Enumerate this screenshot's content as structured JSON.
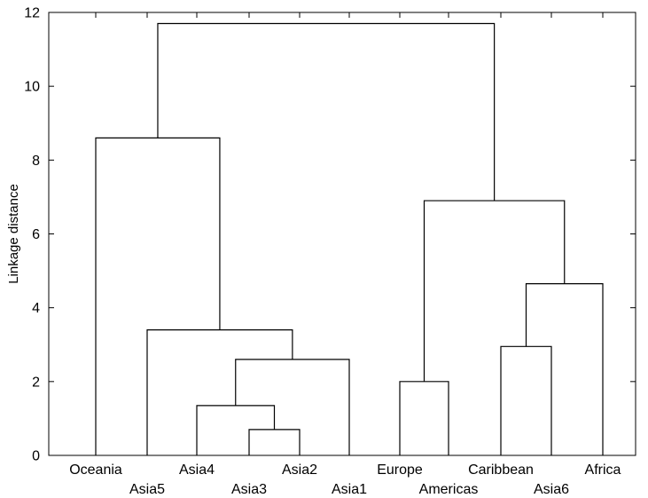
{
  "chart_data": {
    "type": "dendrogram",
    "title": "",
    "xlabel": "",
    "ylabel": "Linkage distance",
    "ylim": [
      0,
      12
    ],
    "y_ticks": [
      0,
      2,
      4,
      6,
      8,
      10,
      12
    ],
    "grid": false,
    "leaves": [
      "Oceania",
      "Asia5",
      "Asia4",
      "Asia3",
      "Asia2",
      "Asia1",
      "Europe",
      "Americas",
      "Caribbean",
      "Asia6",
      "Africa"
    ],
    "merges": [
      {
        "left": "Asia3",
        "right": "Asia2",
        "height": 0.7
      },
      {
        "left": "Asia4",
        "right": "Asia3+Asia2",
        "height": 1.35
      },
      {
        "left": "Asia4+Asia3+Asia2",
        "right": "Asia1",
        "height": 2.6
      },
      {
        "left": "Asia5",
        "right": "Asia4+Asia3+Asia2+Asia1",
        "height": 3.4
      },
      {
        "left": "Oceania",
        "right": "Asia5+Asia4+Asia3+Asia2+Asia1",
        "height": 8.6
      },
      {
        "left": "Europe",
        "right": "Americas",
        "height": 2.0
      },
      {
        "left": "Caribbean",
        "right": "Asia6",
        "height": 2.95
      },
      {
        "left": "Caribbean+Asia6",
        "right": "Africa",
        "height": 4.65
      },
      {
        "left": "Europe+Americas",
        "right": "Caribbean+Asia6+Africa",
        "height": 6.9
      },
      {
        "left": "Oceania+Asia5+Asia4+Asia3+Asia2+Asia1",
        "right": "Europe+Americas+Caribbean+Asia6+Africa",
        "height": 11.7
      }
    ]
  }
}
